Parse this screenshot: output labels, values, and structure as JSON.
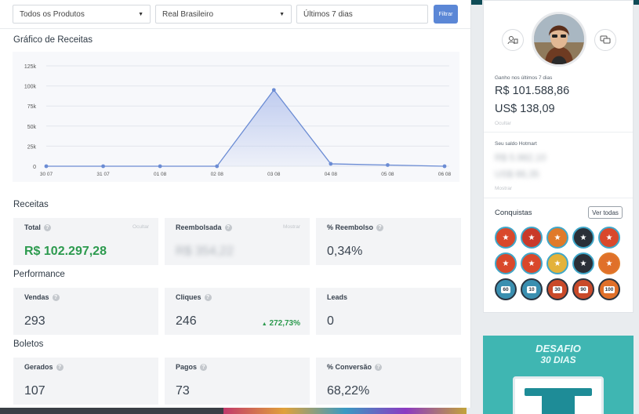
{
  "filters": {
    "product": "Todos os Produtos",
    "currency": "Real Brasileiro",
    "period": "Últimos 7 dias",
    "button": "Filtrar"
  },
  "chart_section_title": "Gráfico de Receitas",
  "chart_data": {
    "type": "area",
    "categories": [
      "30 07",
      "31 07",
      "01 08",
      "02 08",
      "03 08",
      "04 08",
      "05 08",
      "06 08"
    ],
    "values": [
      0,
      0,
      0,
      0,
      95000,
      3000,
      1500,
      0
    ],
    "y_ticks": [
      "0",
      "25k",
      "50k",
      "75k",
      "100k",
      "125k"
    ],
    "ylim": [
      0,
      125000
    ],
    "grid": true,
    "colors": {
      "line": "#6b8cd4",
      "fill": "#b9c7ee"
    }
  },
  "receitas": {
    "title": "Receitas",
    "total": {
      "label": "Total",
      "value": "R$ 102.297,28",
      "aux": "Ocultar"
    },
    "reembolsada": {
      "label": "Reembolsada",
      "value": "R$ 354,22",
      "aux": "Mostrar"
    },
    "reembolso": {
      "label": "% Reembolso",
      "value": "0,34%"
    }
  },
  "performance": {
    "title": "Performance",
    "vendas": {
      "label": "Vendas",
      "value": "293"
    },
    "cliques": {
      "label": "Cliques",
      "value": "246",
      "trend": "272,73%"
    },
    "leads": {
      "label": "Leads",
      "value": "0"
    }
  },
  "boletos": {
    "title": "Boletos",
    "gerados": {
      "label": "Gerados",
      "value": "107"
    },
    "pagos": {
      "label": "Pagos",
      "value": "73"
    },
    "conversao": {
      "label": "% Conversão",
      "value": "68,22%"
    }
  },
  "profile": {
    "earned_label": "Ganho nos últimos 7 dias",
    "earned_brl": "R$ 101.588,86",
    "earned_usd": "US$ 138,09",
    "hide": "Ocultar",
    "balance_label": "Seu saldo Hotmart",
    "balance_1": "R$ 5.982,10",
    "balance_2": "US$ 86,35",
    "show": "Mostrar"
  },
  "conquistas": {
    "title": "Conquistas",
    "button": "Ver todas",
    "badges": [
      "",
      "",
      "",
      "",
      "",
      "",
      "",
      "",
      "",
      "",
      "60",
      "10",
      "30",
      "90",
      "100"
    ]
  },
  "promo": {
    "line1": "DESAFIO",
    "line2": "30 DIAS"
  }
}
